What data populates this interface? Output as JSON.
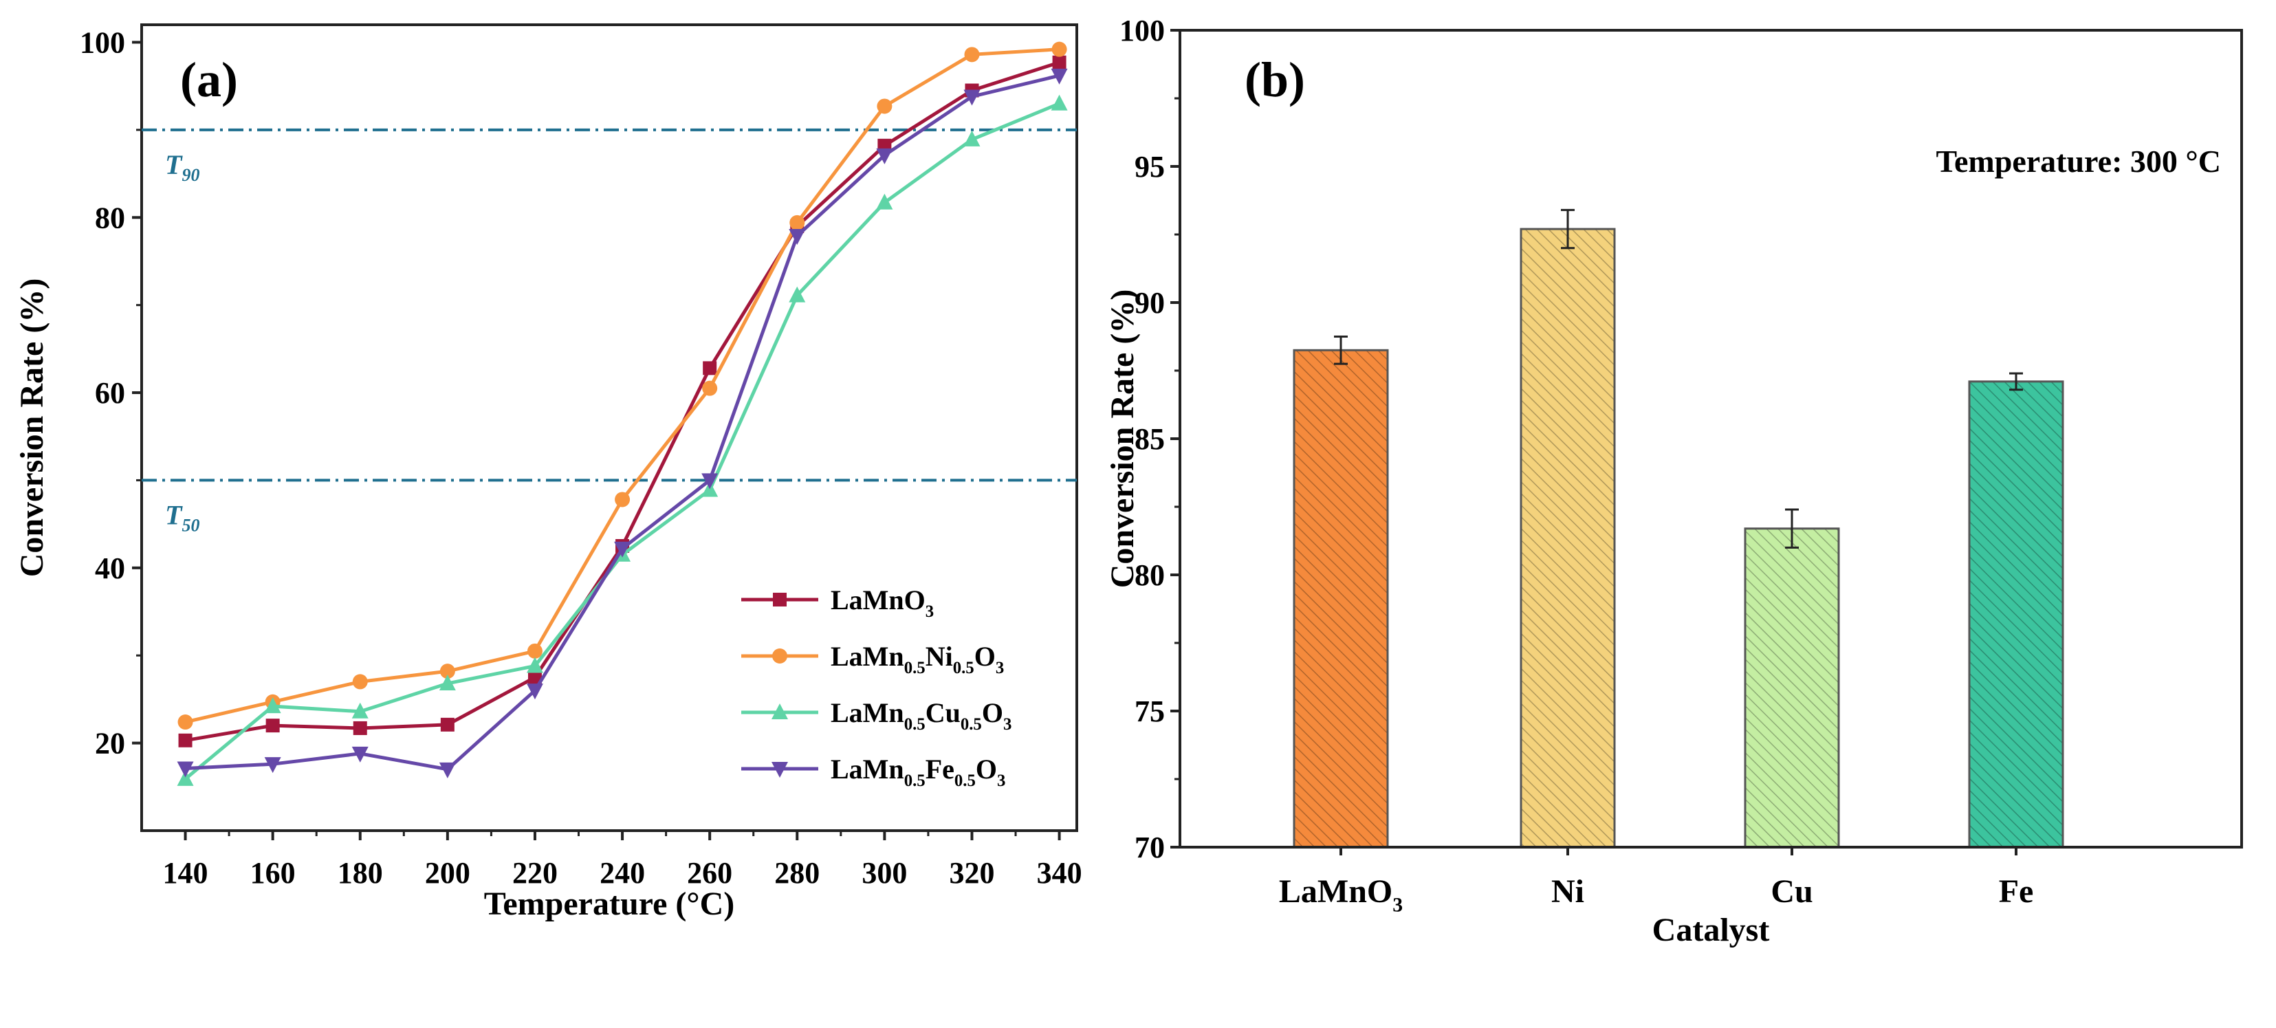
{
  "chart_data": [
    {
      "type": "line",
      "panel_label": "(a)",
      "xlabel": "Temperature (°C)",
      "ylabel": "Conversion Rate (%)",
      "xlim": [
        130,
        344
      ],
      "ylim": [
        10,
        102
      ],
      "x": [
        140,
        160,
        180,
        200,
        220,
        240,
        260,
        280,
        300,
        320,
        340
      ],
      "xticks": [
        140,
        160,
        180,
        200,
        220,
        240,
        260,
        280,
        300,
        320,
        340
      ],
      "yticks": [
        20,
        40,
        60,
        80,
        100
      ],
      "reference_lines": [
        {
          "y": 90,
          "label": "T",
          "sub": "90",
          "color": "#1f6f8f"
        },
        {
          "y": 50,
          "label": "T",
          "sub": "50",
          "color": "#1f6f8f"
        }
      ],
      "legend_position": "bottom-right",
      "series": [
        {
          "name": "LaMnO3",
          "marker": "square",
          "color": "#a3173c",
          "values": [
            20.3,
            22.0,
            21.7,
            22.1,
            27.5,
            42.5,
            62.8,
            79.0,
            88.2,
            94.5,
            97.7
          ]
        },
        {
          "name": "LaMn0.5Ni0.5O3",
          "marker": "circle",
          "color": "#f7953e",
          "values": [
            22.4,
            24.7,
            27.0,
            28.2,
            30.5,
            47.8,
            60.5,
            79.4,
            92.7,
            98.6,
            99.2
          ]
        },
        {
          "name": "LaMn0.5Cu0.5O3",
          "marker": "triangle-up",
          "color": "#5ed4a6",
          "values": [
            15.9,
            24.2,
            23.6,
            26.8,
            28.8,
            41.5,
            48.9,
            71.1,
            81.7,
            88.9,
            93.0
          ]
        },
        {
          "name": "LaMn0.5Fe0.5O3",
          "marker": "triangle-down",
          "color": "#6548a8",
          "values": [
            17.1,
            17.6,
            18.8,
            17.0,
            26.0,
            42.2,
            50.0,
            77.9,
            87.1,
            93.8,
            96.2
          ]
        }
      ]
    },
    {
      "type": "bar",
      "panel_label": "(b)",
      "annotation": "Temperature: 300 °C",
      "xlabel": "Catalyst",
      "ylabel": "Conversion Rate (%)",
      "ylim": [
        70,
        100
      ],
      "yticks": [
        70,
        75,
        80,
        85,
        90,
        95,
        100
      ],
      "categories": [
        "LaMnO3",
        "Ni",
        "Cu",
        "Fe"
      ],
      "values": [
        88.25,
        92.7,
        81.7,
        87.1
      ],
      "errors": [
        0.5,
        0.7,
        0.7,
        0.3
      ],
      "colors": [
        "#f58a3c",
        "#f4d27c",
        "#c4eea2",
        "#3cc49e"
      ]
    }
  ]
}
